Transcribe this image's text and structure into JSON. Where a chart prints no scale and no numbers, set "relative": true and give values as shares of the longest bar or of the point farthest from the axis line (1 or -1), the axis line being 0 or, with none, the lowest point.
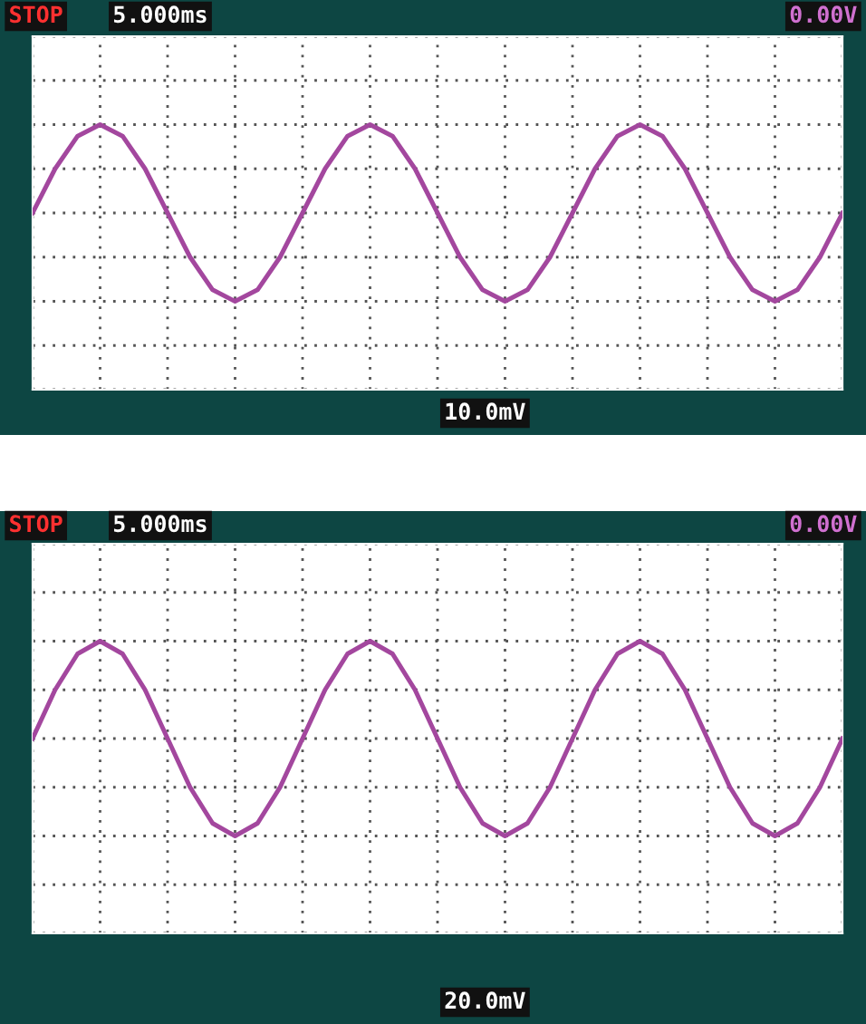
{
  "chart_data": [
    {
      "type": "line",
      "relative": true,
      "grid": true,
      "tick_labels": false,
      "marker": "none",
      "line_style": "solid",
      "categories": [
        null,
        null,
        null,
        null,
        null,
        null,
        null,
        null,
        null,
        null,
        null,
        null,
        null,
        null,
        null,
        null,
        null,
        null,
        null,
        null,
        null,
        null,
        null,
        null,
        null,
        null,
        null,
        null,
        null,
        null,
        null,
        null,
        null,
        null,
        null,
        null,
        null
      ],
      "series": [
        {
          "color": "#a3479e",
          "values": [
            0,
            0.5,
            0.87,
            1,
            0.87,
            0.5,
            0,
            -0.5,
            -0.87,
            -1,
            -0.87,
            -0.5,
            0,
            0.5,
            0.87,
            1,
            0.87,
            0.5,
            0,
            -0.5,
            -0.87,
            -1,
            -0.87,
            -0.5,
            0,
            0.5,
            0.87,
            1,
            0.87,
            0.5,
            0,
            -0.5,
            -0.87,
            -1,
            -0.87,
            -0.5,
            0
          ]
        }
      ],
      "annotations": [
        "STOP",
        "5.000ms",
        "0.00V",
        "10.0mV"
      ]
    },
    {
      "type": "line",
      "relative": true,
      "grid": true,
      "tick_labels": false,
      "marker": "none",
      "line_style": "solid",
      "categories": [
        null,
        null,
        null,
        null,
        null,
        null,
        null,
        null,
        null,
        null,
        null,
        null,
        null,
        null,
        null,
        null,
        null,
        null,
        null,
        null,
        null,
        null,
        null,
        null,
        null,
        null,
        null,
        null,
        null,
        null,
        null,
        null,
        null,
        null,
        null,
        null,
        null
      ],
      "series": [
        {
          "color": "#a3479e",
          "values": [
            0,
            0.5,
            0.87,
            1,
            0.87,
            0.5,
            0,
            -0.5,
            -0.87,
            -1,
            -0.87,
            -0.5,
            0,
            0.5,
            0.87,
            1,
            0.87,
            0.5,
            0,
            -0.5,
            -0.87,
            -1,
            -0.87,
            -0.5,
            0,
            0.5,
            0.87,
            1,
            0.87,
            0.5,
            0,
            -0.5,
            -0.87,
            -1,
            -0.87,
            -0.5,
            0
          ]
        }
      ],
      "annotations": [
        "STOP",
        "5.000ms",
        "0.00V",
        "20.0mV"
      ]
    }
  ]
}
